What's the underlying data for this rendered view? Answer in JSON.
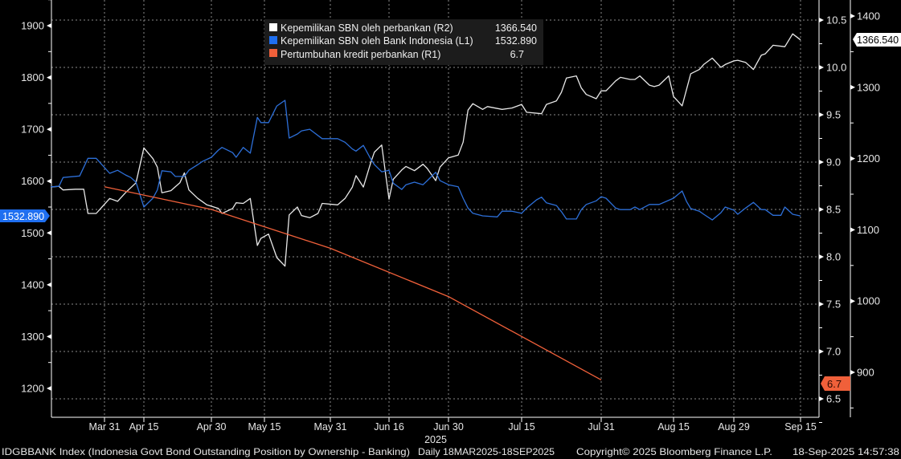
{
  "chart_data": {
    "type": "line",
    "xlabel": "2025",
    "x_ticks": [
      "Mar 31",
      "Apr 15",
      "Apr 30",
      "May 15",
      "May 31",
      "Jun 16",
      "Jun 30",
      "Jul 15",
      "Jul 31",
      "Aug 15",
      "Aug 29",
      "Sep 15"
    ],
    "x_tick_dates": [
      "2025-03-31",
      "2025-04-15",
      "2025-04-30",
      "2025-05-15",
      "2025-05-31",
      "2025-06-16",
      "2025-06-30",
      "2025-07-15",
      "2025-07-31",
      "2025-08-15",
      "2025-08-29",
      "2025-09-15"
    ],
    "xlim": [
      "2025-03-18",
      "2025-09-18"
    ],
    "axes": {
      "L1": {
        "ylim": [
          1150,
          1940
        ],
        "ticks": [
          "1200",
          "1300",
          "1400",
          "1500",
          "1600",
          "1700",
          "1800",
          "1900"
        ]
      },
      "R1": {
        "ylim": [
          6.3,
          10.7
        ],
        "ticks": [
          "6.5",
          "7.0",
          "7.5",
          "8.0",
          "8.5",
          "9.0",
          "9.5",
          "10.0",
          "10.5"
        ]
      },
      "R2": {
        "ylim": [
          860,
          1420
        ],
        "ticks": [
          "900",
          "1000",
          "1100",
          "1200",
          "1300",
          "1400"
        ]
      }
    },
    "grid": true,
    "legend_position": "top-center",
    "series": [
      {
        "name": "Kepemilikan SBN oleh perbankan (R2)",
        "axis": "R2",
        "color": "#e8e8e8",
        "last_value": "1366.540",
        "points": [
          [
            "2025-03-18",
            1160
          ],
          [
            "2025-03-20",
            1161
          ],
          [
            "2025-03-21",
            1156
          ],
          [
            "2025-03-24",
            1157
          ],
          [
            "2025-03-26",
            1157
          ],
          [
            "2025-03-27",
            1123
          ],
          [
            "2025-03-29",
            1123
          ],
          [
            "2025-04-02",
            1144
          ],
          [
            "2025-04-05",
            1140
          ],
          [
            "2025-04-08",
            1152
          ],
          [
            "2025-04-12",
            1166
          ],
          [
            "2025-04-15",
            1215
          ],
          [
            "2025-04-17",
            1200
          ],
          [
            "2025-04-18",
            1188
          ],
          [
            "2025-04-19",
            1152
          ],
          [
            "2025-04-21",
            1155
          ],
          [
            "2025-04-23",
            1166
          ],
          [
            "2025-04-24",
            1180
          ],
          [
            "2025-04-25",
            1156
          ],
          [
            "2025-04-27",
            1144
          ],
          [
            "2025-04-29",
            1135
          ],
          [
            "2025-05-02",
            1130
          ],
          [
            "2025-05-03",
            1123
          ],
          [
            "2025-05-06",
            1130
          ],
          [
            "2025-05-07",
            1138
          ],
          [
            "2025-05-09",
            1137
          ],
          [
            "2025-05-11",
            1144
          ],
          [
            "2025-05-13",
            1078
          ],
          [
            "2025-05-14",
            1088
          ],
          [
            "2025-05-16",
            1094
          ],
          [
            "2025-05-18",
            1061
          ],
          [
            "2025-05-20",
            1049
          ],
          [
            "2025-05-21",
            1121
          ],
          [
            "2025-05-23",
            1132
          ],
          [
            "2025-05-24",
            1120
          ],
          [
            "2025-05-26",
            1117
          ],
          [
            "2025-05-28",
            1123
          ],
          [
            "2025-05-29",
            1137
          ],
          [
            "2025-06-02",
            1135
          ],
          [
            "2025-06-04",
            1144
          ],
          [
            "2025-06-06",
            1160
          ],
          [
            "2025-06-07",
            1176
          ],
          [
            "2025-06-09",
            1160
          ],
          [
            "2025-06-11",
            1194
          ],
          [
            "2025-06-12",
            1209
          ],
          [
            "2025-06-14",
            1219
          ],
          [
            "2025-06-16",
            1143
          ],
          [
            "2025-06-17",
            1171
          ],
          [
            "2025-06-19",
            1184
          ],
          [
            "2025-06-20",
            1189
          ],
          [
            "2025-06-22",
            1183
          ],
          [
            "2025-06-24",
            1192
          ],
          [
            "2025-06-25",
            1186
          ],
          [
            "2025-06-27",
            1169
          ],
          [
            "2025-06-28",
            1188
          ],
          [
            "2025-06-30",
            1201
          ],
          [
            "2025-07-02",
            1205
          ],
          [
            "2025-07-03",
            1223
          ],
          [
            "2025-07-04",
            1268
          ],
          [
            "2025-07-05",
            1277
          ],
          [
            "2025-07-07",
            1269
          ],
          [
            "2025-07-08",
            1273
          ],
          [
            "2025-07-11",
            1269
          ],
          [
            "2025-07-13",
            1271
          ],
          [
            "2025-07-15",
            1276
          ],
          [
            "2025-07-16",
            1265
          ],
          [
            "2025-07-19",
            1263
          ],
          [
            "2025-07-20",
            1276
          ],
          [
            "2025-07-22",
            1281
          ],
          [
            "2025-07-23",
            1293
          ],
          [
            "2025-07-24",
            1313
          ],
          [
            "2025-07-26",
            1316
          ],
          [
            "2025-07-27",
            1299
          ],
          [
            "2025-07-28",
            1290
          ],
          [
            "2025-07-30",
            1284
          ],
          [
            "2025-07-31",
            1295
          ],
          [
            "2025-08-01",
            1295
          ],
          [
            "2025-08-03",
            1309
          ],
          [
            "2025-08-04",
            1314
          ],
          [
            "2025-08-06",
            1311
          ],
          [
            "2025-08-07",
            1311
          ],
          [
            "2025-08-08",
            1316
          ],
          [
            "2025-08-10",
            1303
          ],
          [
            "2025-08-11",
            1301
          ],
          [
            "2025-08-12",
            1303
          ],
          [
            "2025-08-14",
            1316
          ],
          [
            "2025-08-15",
            1287
          ],
          [
            "2025-08-17",
            1274
          ],
          [
            "2025-08-19",
            1319
          ],
          [
            "2025-08-21",
            1325
          ],
          [
            "2025-08-22",
            1332
          ],
          [
            "2025-08-24",
            1341
          ],
          [
            "2025-08-26",
            1328
          ],
          [
            "2025-08-27",
            1332
          ],
          [
            "2025-08-29",
            1337
          ],
          [
            "2025-08-30",
            1338
          ],
          [
            "2025-09-01",
            1335
          ],
          [
            "2025-09-03",
            1325
          ],
          [
            "2025-09-05",
            1345
          ],
          [
            "2025-09-06",
            1347
          ],
          [
            "2025-09-08",
            1359
          ],
          [
            "2025-09-11",
            1357
          ],
          [
            "2025-09-13",
            1375
          ],
          [
            "2025-09-15",
            1366.54
          ]
        ]
      },
      {
        "name": "Kepemilikan SBN oleh Bank Indonesia (L1)",
        "axis": "L1",
        "color": "#2d6fd8",
        "last_value": "1532.890",
        "points": [
          [
            "2025-03-18",
            1589
          ],
          [
            "2025-03-20",
            1590
          ],
          [
            "2025-03-21",
            1607
          ],
          [
            "2025-03-25",
            1610
          ],
          [
            "2025-03-27",
            1644
          ],
          [
            "2025-03-29",
            1644
          ],
          [
            "2025-04-02",
            1615
          ],
          [
            "2025-04-05",
            1621
          ],
          [
            "2025-04-08",
            1612
          ],
          [
            "2025-04-10",
            1607
          ],
          [
            "2025-04-12",
            1598
          ],
          [
            "2025-04-15",
            1550
          ],
          [
            "2025-04-17",
            1567
          ],
          [
            "2025-04-18",
            1583
          ],
          [
            "2025-04-19",
            1620
          ],
          [
            "2025-04-21",
            1618
          ],
          [
            "2025-04-22",
            1609
          ],
          [
            "2025-04-24",
            1609
          ],
          [
            "2025-04-25",
            1621
          ],
          [
            "2025-04-27",
            1632
          ],
          [
            "2025-04-28",
            1638
          ],
          [
            "2025-04-30",
            1646
          ],
          [
            "2025-05-02",
            1660
          ],
          [
            "2025-05-03",
            1665
          ],
          [
            "2025-05-06",
            1655
          ],
          [
            "2025-05-07",
            1646
          ],
          [
            "2025-05-09",
            1665
          ],
          [
            "2025-05-11",
            1654
          ],
          [
            "2025-05-13",
            1723
          ],
          [
            "2025-05-14",
            1713
          ],
          [
            "2025-05-16",
            1713
          ],
          [
            "2025-05-18",
            1745
          ],
          [
            "2025-05-20",
            1756
          ],
          [
            "2025-05-21",
            1683
          ],
          [
            "2025-05-23",
            1691
          ],
          [
            "2025-05-24",
            1697
          ],
          [
            "2025-05-26",
            1700
          ],
          [
            "2025-05-27",
            1694
          ],
          [
            "2025-05-29",
            1682
          ],
          [
            "2025-06-02",
            1682
          ],
          [
            "2025-06-04",
            1675
          ],
          [
            "2025-06-06",
            1662
          ],
          [
            "2025-06-07",
            1658
          ],
          [
            "2025-06-09",
            1669
          ],
          [
            "2025-06-11",
            1643
          ],
          [
            "2025-06-12",
            1632
          ],
          [
            "2025-06-14",
            1618
          ],
          [
            "2025-06-16",
            1621
          ],
          [
            "2025-06-17",
            1596
          ],
          [
            "2025-06-19",
            1584
          ],
          [
            "2025-06-20",
            1593
          ],
          [
            "2025-06-22",
            1598
          ],
          [
            "2025-06-24",
            1593
          ],
          [
            "2025-06-25",
            1601
          ],
          [
            "2025-06-27",
            1617
          ],
          [
            "2025-06-28",
            1601
          ],
          [
            "2025-06-30",
            1593
          ],
          [
            "2025-07-02",
            1589
          ],
          [
            "2025-07-03",
            1567
          ],
          [
            "2025-07-04",
            1548
          ],
          [
            "2025-07-05",
            1538
          ],
          [
            "2025-07-07",
            1533
          ],
          [
            "2025-07-10",
            1531
          ],
          [
            "2025-07-11",
            1542
          ],
          [
            "2025-07-13",
            1542
          ],
          [
            "2025-07-15",
            1538
          ],
          [
            "2025-07-16",
            1548
          ],
          [
            "2025-07-18",
            1564
          ],
          [
            "2025-07-19",
            1569
          ],
          [
            "2025-07-20",
            1558
          ],
          [
            "2025-07-22",
            1553
          ],
          [
            "2025-07-23",
            1541
          ],
          [
            "2025-07-24",
            1527
          ],
          [
            "2025-07-26",
            1527
          ],
          [
            "2025-07-27",
            1545
          ],
          [
            "2025-07-28",
            1555
          ],
          [
            "2025-07-30",
            1562
          ],
          [
            "2025-07-31",
            1570
          ],
          [
            "2025-08-01",
            1567
          ],
          [
            "2025-08-03",
            1548
          ],
          [
            "2025-08-04",
            1545
          ],
          [
            "2025-08-06",
            1545
          ],
          [
            "2025-08-07",
            1550
          ],
          [
            "2025-08-08",
            1545
          ],
          [
            "2025-08-10",
            1555
          ],
          [
            "2025-08-12",
            1555
          ],
          [
            "2025-08-15",
            1567
          ],
          [
            "2025-08-17",
            1581
          ],
          [
            "2025-08-18",
            1561
          ],
          [
            "2025-08-19",
            1547
          ],
          [
            "2025-08-21",
            1542
          ],
          [
            "2025-08-22",
            1536
          ],
          [
            "2025-08-24",
            1525
          ],
          [
            "2025-08-26",
            1539
          ],
          [
            "2025-08-27",
            1550
          ],
          [
            "2025-08-29",
            1544
          ],
          [
            "2025-08-30",
            1536
          ],
          [
            "2025-09-01",
            1548
          ],
          [
            "2025-09-03",
            1559
          ],
          [
            "2025-09-05",
            1545
          ],
          [
            "2025-09-06",
            1545
          ],
          [
            "2025-09-08",
            1534
          ],
          [
            "2025-09-10",
            1534
          ],
          [
            "2025-09-11",
            1550
          ],
          [
            "2025-09-13",
            1536
          ],
          [
            "2025-09-15",
            1532.89
          ]
        ]
      },
      {
        "name": "Pertumbuhan kredit perbankan (R1)",
        "axis": "R1",
        "color": "#f0603a",
        "last_value": "6.7",
        "points": [
          [
            "2025-03-31",
            8.74
          ],
          [
            "2025-04-30",
            8.5
          ],
          [
            "2025-05-31",
            8.09
          ],
          [
            "2025-06-30",
            7.58
          ],
          [
            "2025-07-31",
            6.7
          ]
        ]
      }
    ]
  },
  "footer": {
    "index_description": "IDGBBANK Index (Indonesia Govt Bond Outstanding Position by Ownership - Banking)",
    "range": "Daily 18MAR2025-18SEP2025",
    "copyright": "Copyright© 2025 Bloomberg Finance L.P.",
    "timestamp": "18-Sep-2025 14:57:38"
  }
}
